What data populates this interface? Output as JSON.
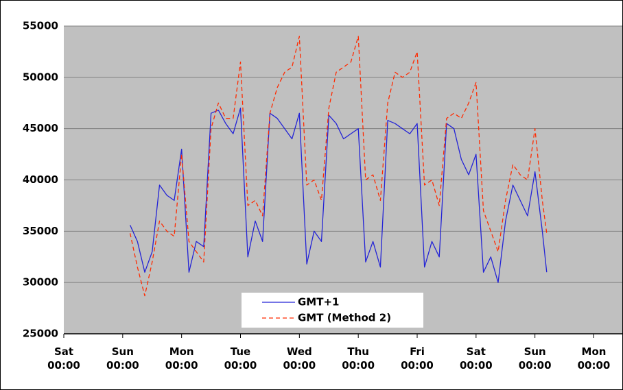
{
  "chart_data": {
    "type": "line",
    "x": [
      1.125,
      1.25,
      1.375,
      1.5,
      1.625,
      1.75,
      1.875,
      2.0,
      2.125,
      2.25,
      2.375,
      2.5,
      2.625,
      2.75,
      2.875,
      3.0,
      3.125,
      3.25,
      3.375,
      3.5,
      3.625,
      3.75,
      3.875,
      4.0,
      4.125,
      4.25,
      4.375,
      4.5,
      4.625,
      4.75,
      4.875,
      5.0,
      5.125,
      5.25,
      5.375,
      5.5,
      5.625,
      5.75,
      5.875,
      6.0,
      6.125,
      6.25,
      6.375,
      6.5,
      6.625,
      6.75,
      6.875,
      7.0,
      7.125,
      7.25,
      7.375,
      7.5,
      7.625,
      7.75,
      7.875,
      8.0,
      8.125,
      8.2
    ],
    "series": [
      {
        "name": "GMT+1",
        "color": "#2323d6",
        "style": "solid",
        "values": [
          35600,
          34000,
          31000,
          33000,
          39500,
          38500,
          38000,
          43000,
          31000,
          34000,
          33500,
          46500,
          46800,
          45500,
          44500,
          47000,
          32500,
          36000,
          34000,
          46500,
          46000,
          45000,
          44000,
          46500,
          31800,
          35000,
          34000,
          46300,
          45500,
          44000,
          44500,
          45000,
          32000,
          34000,
          31500,
          45800,
          45500,
          45000,
          44500,
          45500,
          31500,
          34000,
          32500,
          45500,
          45000,
          42000,
          40500,
          42500,
          31000,
          32500,
          30000,
          36000,
          39500,
          38000,
          36500,
          40800,
          35000,
          31000
        ]
      },
      {
        "name": "GMT (Method 2)",
        "color": "#ff2a00",
        "style": "dashed",
        "values": [
          34800,
          31500,
          28700,
          32000,
          36000,
          35000,
          34500,
          42500,
          34000,
          33000,
          32000,
          45000,
          47500,
          46000,
          46000,
          51500,
          37500,
          38000,
          36500,
          46500,
          49000,
          50500,
          51000,
          54000,
          39500,
          40000,
          38000,
          47000,
          50500,
          51000,
          51500,
          54000,
          40000,
          40500,
          38000,
          47500,
          50500,
          50000,
          50500,
          52500,
          39500,
          40000,
          37500,
          46000,
          46500,
          46000,
          47500,
          49500,
          37000,
          35000,
          33000,
          38000,
          41500,
          40500,
          40000,
          45000,
          38000,
          34800
        ]
      }
    ],
    "xlim": [
      0,
      9
    ],
    "xticks": [
      {
        "value": 0,
        "label": "Sat 00:00"
      },
      {
        "value": 1,
        "label": "Sun 00:00"
      },
      {
        "value": 2,
        "label": "Mon 00:00"
      },
      {
        "value": 3,
        "label": "Tue 00:00"
      },
      {
        "value": 4,
        "label": "Wed 00:00"
      },
      {
        "value": 5,
        "label": "Thu 00:00"
      },
      {
        "value": 6,
        "label": "Fri 00:00"
      },
      {
        "value": 7,
        "label": "Sat 00:00"
      },
      {
        "value": 8,
        "label": "Sun 00:00"
      },
      {
        "value": 9,
        "label": "Mon 00:00"
      }
    ],
    "ylim": [
      25000,
      55000
    ],
    "yticks": [
      25000,
      30000,
      35000,
      40000,
      45000,
      50000,
      55000
    ],
    "grid": true,
    "legend": "bottom-center",
    "background": "#c0c0c0"
  }
}
